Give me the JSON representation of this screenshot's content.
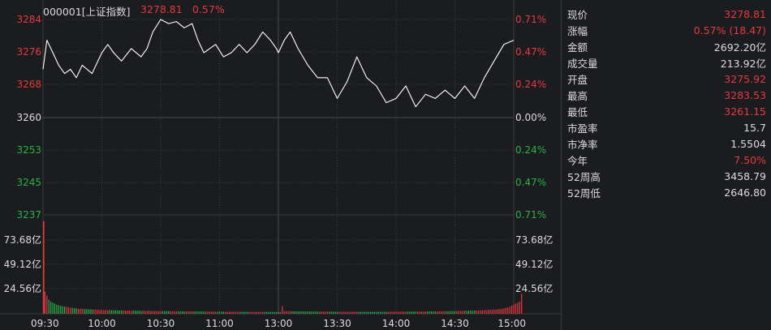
{
  "header": {
    "symbol": "000001[上证指数]",
    "price": "3278.81",
    "change_pct": "0.57%"
  },
  "chart_data": {
    "type": "line",
    "title": "000001[上证指数]",
    "prev_close": 3260,
    "ylim": [
      3237,
      3284
    ],
    "x_ticks": [
      "09:30",
      "10:00",
      "10:30",
      "11:00",
      "13:00",
      "13:30",
      "14:00",
      "14:30",
      "15:00"
    ],
    "y_ticks_left": [
      "3284",
      "3276",
      "3268",
      "3260",
      "3253",
      "3245",
      "3237"
    ],
    "y_ticks_right": [
      "0.71%",
      "0.47%",
      "0.24%",
      "0.00%",
      "0.24%",
      "0.47%",
      "0.71%"
    ],
    "series": [
      {
        "name": "price",
        "x": [
          0,
          2,
          5,
          8,
          11,
          14,
          17,
          20,
          25,
          30,
          33,
          36,
          40,
          45,
          50,
          53,
          56,
          60,
          64,
          68,
          72,
          76,
          79,
          82,
          85,
          88,
          92,
          96,
          100,
          104,
          108,
          112,
          116,
          119,
          120,
          123,
          126,
          130,
          135,
          140,
          145,
          150,
          155,
          160,
          165,
          170,
          175,
          180,
          185,
          190,
          195,
          200,
          205,
          210,
          215,
          220,
          225,
          230,
          235,
          240
        ],
        "values": [
          3272,
          3279,
          3276,
          3273,
          3271,
          3272,
          3270,
          3273,
          3271,
          3276,
          3278,
          3276,
          3274,
          3277,
          3275,
          3277,
          3281,
          3284,
          3283,
          3283.5,
          3282,
          3283,
          3279,
          3276,
          3277,
          3278,
          3275,
          3276,
          3278,
          3276,
          3278,
          3281,
          3279,
          3277,
          3276,
          3279,
          3281,
          3277,
          3273,
          3270,
          3270,
          3265,
          3269,
          3275,
          3270,
          3268,
          3264,
          3265,
          3268,
          3263,
          3266,
          3265,
          3267,
          3265,
          3268,
          3265,
          3270,
          3274,
          3278,
          3279
        ]
      }
    ],
    "volume": {
      "ylim_label": "亿",
      "y_ticks": [
        "73.68亿",
        "49.12亿",
        "24.56亿"
      ],
      "max": 98.24,
      "first_bar": 92,
      "bars": [
        22,
        18,
        14,
        12,
        11,
        10,
        9,
        8.5,
        8,
        7.5,
        7,
        7,
        6.5,
        6,
        6,
        5.5,
        5.5,
        5,
        5,
        5,
        4.8,
        4.6,
        4.5,
        4.4,
        4.3,
        4.2,
        4.1,
        4,
        3.9,
        3.8,
        3.8,
        3.7,
        3.6,
        3.6,
        3.5,
        3.5,
        3.4,
        3.4,
        3.3,
        3.3,
        3.3,
        3.2,
        3.2,
        3.2,
        3.1,
        3.1,
        3.1,
        3,
        3,
        3,
        3,
        2.9,
        2.9,
        2.9,
        2.8,
        2.8,
        2.8,
        2.8,
        2.7,
        2.7,
        2.7,
        2.7,
        2.6,
        2.6,
        2.6,
        2.6,
        2.5,
        2.5,
        2.5,
        2.5,
        2.5,
        2.4,
        2.4,
        2.4,
        2.4,
        2.4,
        2.3,
        2.3,
        2.3,
        2.3,
        2.3,
        2.3,
        2.2,
        2.2,
        2.2,
        2.2,
        2.2,
        2.2,
        2.1,
        2.1,
        2.1,
        2.1,
        2.1,
        2.1,
        2.1,
        2,
        2,
        2,
        2,
        2,
        2,
        2,
        2,
        2,
        2,
        1.9,
        1.9,
        1.9,
        1.9,
        1.9,
        1.9,
        1.9,
        1.9,
        1.9,
        1.9,
        1.9,
        1.9,
        1.8,
        1.8,
        1.8,
        1.8,
        7.5,
        2.6,
        2.6,
        2.5,
        2.5,
        2.5,
        2.4,
        2.4,
        2.4,
        2.4,
        2.3,
        2.3,
        2.3,
        2.3,
        2.3,
        2.2,
        2.2,
        2.2,
        2.2,
        2.2,
        2.2,
        2.1,
        2.1,
        2.1,
        2.1,
        2.1,
        2.1,
        2.1,
        2,
        2,
        2,
        2,
        2,
        2,
        2,
        2,
        2,
        2,
        2,
        2,
        2,
        2,
        2,
        2,
        2,
        2,
        2,
        2,
        2,
        2,
        2,
        2,
        2,
        2,
        2,
        2,
        2.1,
        2.1,
        2.1,
        2.1,
        2.1,
        2.1,
        2.1,
        2.1,
        2.2,
        2.2,
        2.2,
        2.2,
        2.2,
        2.2,
        2.2,
        2.3,
        2.3,
        2.3,
        2.3,
        2.3,
        2.4,
        2.4,
        2.4,
        2.4,
        2.5,
        2.5,
        2.5,
        2.5,
        2.6,
        2.6,
        2.6,
        2.7,
        2.7,
        2.7,
        2.8,
        2.8,
        2.9,
        2.9,
        3,
        3,
        3.1,
        3.1,
        3.2,
        3.3,
        3.3,
        3.4,
        3.5,
        3.6,
        3.7,
        3.8,
        3.9,
        4,
        4.2,
        4.4,
        4.6,
        4.8,
        5,
        5.5,
        6,
        6.5,
        7,
        8,
        9,
        10,
        11,
        12,
        20
      ],
      "colors_up": "#e8393d",
      "colors_down": "#2ab14a"
    }
  },
  "side_panel": {
    "rows": [
      {
        "label": "现价",
        "value": "3278.81",
        "red": true
      },
      {
        "label": "涨幅",
        "value": "0.57% (18.47)",
        "red": true
      },
      {
        "label": "金额",
        "value": "2692.20亿",
        "red": false
      },
      {
        "label": "成交量",
        "value": "213.92亿",
        "red": false
      },
      {
        "label": "开盘",
        "value": "3275.92",
        "red": true
      },
      {
        "label": "最高",
        "value": "3283.53",
        "red": true
      },
      {
        "label": "最低",
        "value": "3261.15",
        "red": true
      },
      {
        "label": "市盈率",
        "value": "15.7",
        "red": false
      },
      {
        "label": "市净率",
        "value": "1.5504",
        "red": false
      },
      {
        "label": "今年",
        "value": "7.50%",
        "red": true
      },
      {
        "label": "52周高",
        "value": "3458.79",
        "red": false
      },
      {
        "label": "52周低",
        "value": "2646.80",
        "red": false
      }
    ]
  },
  "colors": {
    "background": "#1b1c20",
    "grid": "#3a3b40",
    "up": "#e8393d",
    "down": "#2ab14a",
    "price_line": "#ffffff",
    "text": "#dcdcdc"
  }
}
